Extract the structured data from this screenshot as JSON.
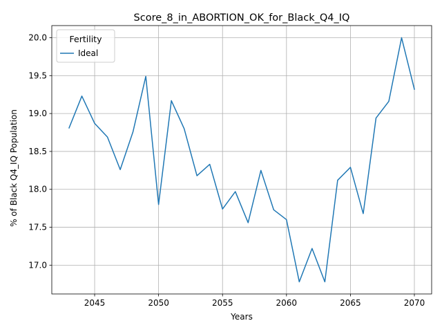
{
  "chart_data": {
    "type": "line",
    "title": "Score_8_in_ABORTION_OK_for_Black_Q4_IQ",
    "xlabel": "Years",
    "ylabel": "% of Black Q4_IQ Population",
    "xlim": [
      2041.65,
      2071.35
    ],
    "ylim": [
      16.62,
      20.16
    ],
    "xticks": [
      2045,
      2050,
      2055,
      2060,
      2065,
      2070
    ],
    "yticks": [
      17.0,
      17.5,
      18.0,
      18.5,
      19.0,
      19.5,
      20.0
    ],
    "xtick_labels": [
      "2045",
      "2050",
      "2055",
      "2060",
      "2065",
      "2070"
    ],
    "ytick_labels": [
      "17.0",
      "17.5",
      "18.0",
      "18.5",
      "19.0",
      "19.5",
      "20.0"
    ],
    "grid": true,
    "legend": {
      "title": "Fertility",
      "placement": "upper-left"
    },
    "series": [
      {
        "name": "Ideal",
        "color": "#1f77b4",
        "x": [
          2043,
          2044,
          2045,
          2046,
          2047,
          2048,
          2049,
          2050,
          2051,
          2052,
          2053,
          2054,
          2055,
          2056,
          2057,
          2058,
          2059,
          2060,
          2061,
          2062,
          2063,
          2064,
          2065,
          2066,
          2067,
          2068,
          2069,
          2070
        ],
        "y": [
          18.81,
          19.23,
          18.87,
          18.69,
          18.26,
          18.76,
          19.49,
          17.8,
          19.17,
          18.8,
          18.18,
          18.33,
          17.74,
          17.97,
          17.56,
          18.25,
          17.73,
          17.6,
          16.78,
          17.22,
          16.78,
          18.12,
          18.29,
          17.68,
          18.94,
          19.16,
          20.0,
          19.32
        ]
      }
    ]
  }
}
